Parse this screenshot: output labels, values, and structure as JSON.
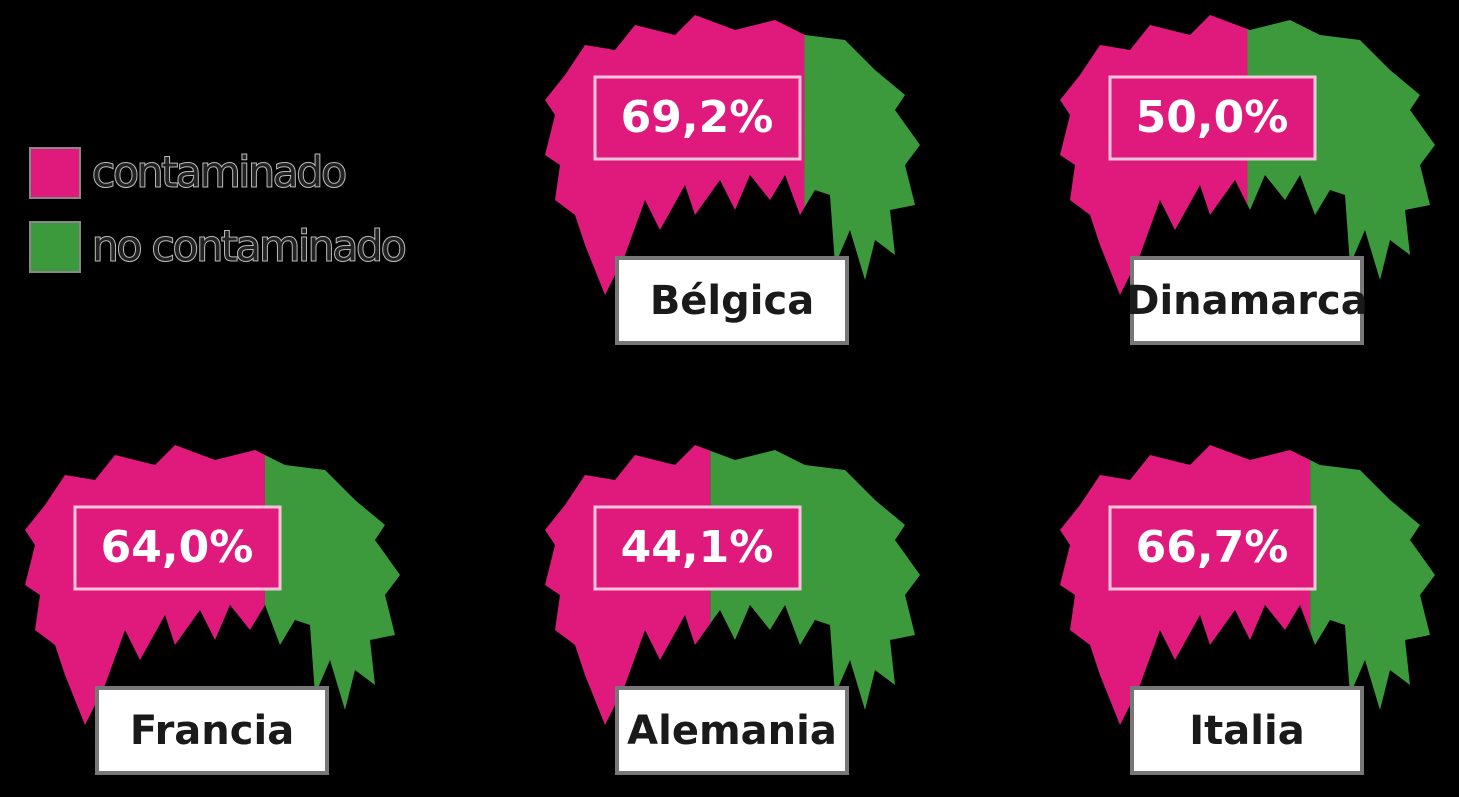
{
  "chart_data": {
    "type": "pictograph",
    "categories": [
      "Bélgica",
      "Dinamarca",
      "Francia",
      "Alemania",
      "Italia"
    ],
    "series": [
      {
        "name": "contaminado",
        "color": "#e0197d",
        "values": [
          69.2,
          50.0,
          64.0,
          44.1,
          66.7
        ],
        "value_labels": [
          "69,2%",
          "50,0%",
          "64,0%",
          "44,1%",
          "66,7%"
        ]
      },
      {
        "name": "no contaminado",
        "color": "#3c9a3c"
      }
    ],
    "ylim": [
      0,
      100
    ]
  }
}
